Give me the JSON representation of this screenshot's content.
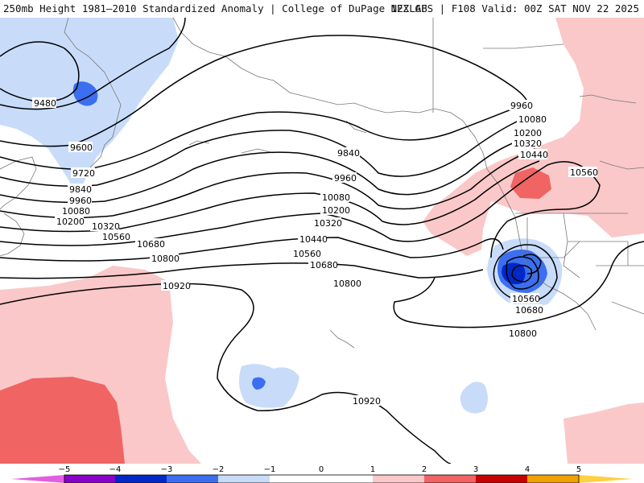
{
  "header": {
    "title_left": "250mb Height 1981–2010 Standardized Anomaly | College of DuPage NEXLAB",
    "title_right": "12Z GFS | F108 Valid: 00Z SAT NOV 22 2025"
  },
  "colors": {
    "anomaly_neg_5": "#e060e0",
    "anomaly_neg_4": "#8a00c8",
    "anomaly_neg_3": "#0028c8",
    "anomaly_neg_2": "#3c6ef0",
    "anomaly_neg_1": "#c8dcfa",
    "anomaly_zero": "#ffffff",
    "anomaly_pos_1": "#fac8c8",
    "anomaly_pos_2": "#f06464",
    "anomaly_pos_3": "#c80000",
    "anomaly_pos_4": "#f0a000",
    "anomaly_pos_5": "#ffd040"
  },
  "contour_labels": [
    {
      "text": "9480",
      "id": "c9480"
    },
    {
      "text": "9600",
      "id": "c9600a"
    },
    {
      "text": "9720",
      "id": "c9720"
    },
    {
      "text": "9840",
      "id": "c9840a"
    },
    {
      "text": "9960",
      "id": "c9960a"
    },
    {
      "text": "10080",
      "id": "c10080a"
    },
    {
      "text": "10200",
      "id": "c10200a"
    },
    {
      "text": "10320",
      "id": "c10320a"
    },
    {
      "text": "10560",
      "id": "c10560a"
    },
    {
      "text": "10680",
      "id": "c10680a"
    },
    {
      "text": "10800",
      "id": "c10800a"
    },
    {
      "text": "10920",
      "id": "c10920a"
    },
    {
      "text": "9840",
      "id": "c9840b"
    },
    {
      "text": "9960",
      "id": "c9960b"
    },
    {
      "text": "10080",
      "id": "c10080b"
    },
    {
      "text": "10200",
      "id": "c10200b"
    },
    {
      "text": "10320",
      "id": "c10320b"
    },
    {
      "text": "10440",
      "id": "c10440b"
    },
    {
      "text": "10560",
      "id": "c10560b"
    },
    {
      "text": "10680",
      "id": "c10680b"
    },
    {
      "text": "10800",
      "id": "c10800b"
    },
    {
      "text": "9960",
      "id": "c9960c"
    },
    {
      "text": "10080",
      "id": "c10080c"
    },
    {
      "text": "10200",
      "id": "c10200c"
    },
    {
      "text": "10320",
      "id": "c10320c"
    },
    {
      "text": "10440",
      "id": "c10440c"
    },
    {
      "text": "10560",
      "id": "c10560c"
    },
    {
      "text": "10560",
      "id": "c10560d"
    },
    {
      "text": "10680",
      "id": "c10680d"
    },
    {
      "text": "10800",
      "id": "c10800d"
    },
    {
      "text": "10920",
      "id": "c10920d"
    }
  ],
  "colorbar": {
    "ticks": [
      "−5",
      "−4",
      "−3",
      "−2",
      "−1",
      "0",
      "1",
      "2",
      "3",
      "4",
      "5"
    ]
  }
}
